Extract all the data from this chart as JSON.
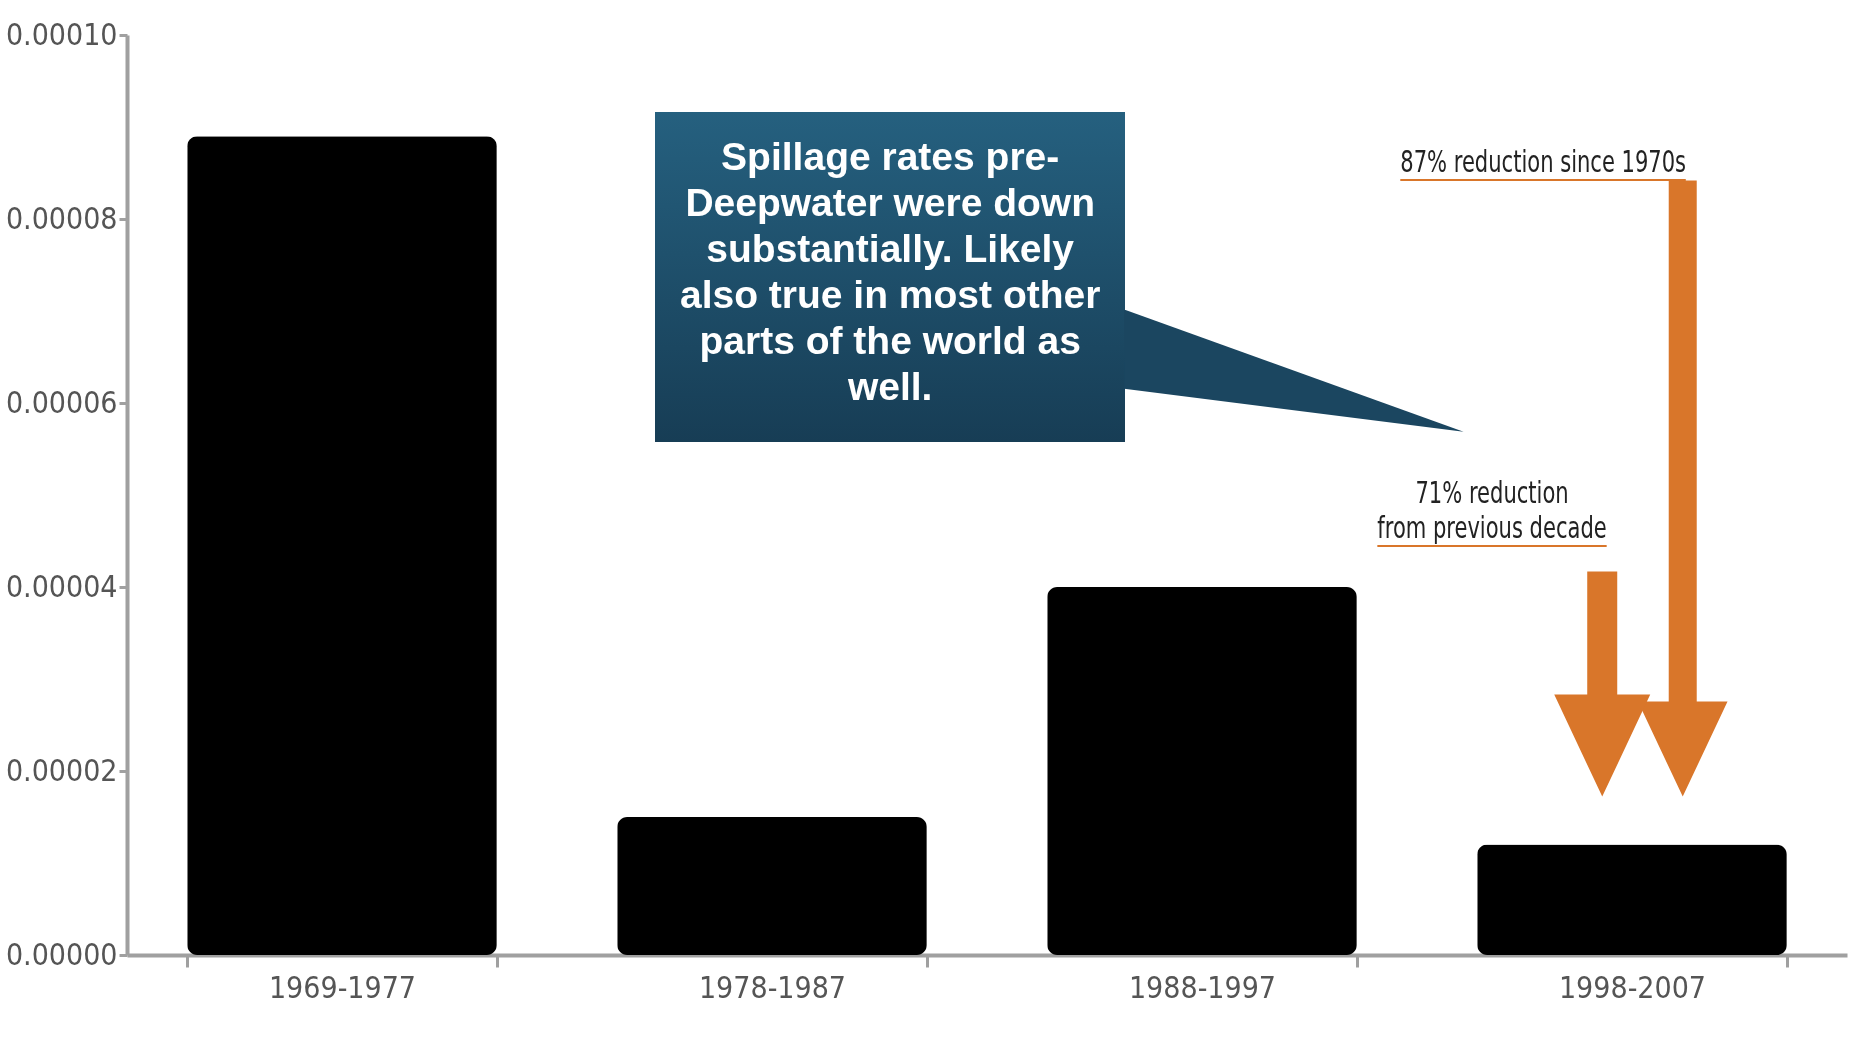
{
  "chart_data": {
    "type": "bar",
    "categories": [
      "1969-1977",
      "1978-1987",
      "1988-1997",
      "1998-2007"
    ],
    "values": [
      8.9e-05,
      1.5e-05,
      4e-05,
      1.2e-05
    ],
    "color": "#000000",
    "ylim": [
      0,
      0.0001
    ],
    "yticks": [
      {
        "value": 0,
        "label": "0.00000"
      },
      {
        "value": 2e-05,
        "label": "0.00002"
      },
      {
        "value": 4e-05,
        "label": "0.00004"
      },
      {
        "value": 6e-05,
        "label": "0.00006"
      },
      {
        "value": 8e-05,
        "label": "0.00008"
      },
      {
        "value": 0.0001,
        "label": "0.00010"
      }
    ],
    "grid": false,
    "annotations": [
      "Spillage rates pre-Deepwater were down substantially.  Likely also true in most other parts of the world as well.",
      "87% reduction since 1970s",
      "71% reduction\nfrom previous decade"
    ]
  }
}
